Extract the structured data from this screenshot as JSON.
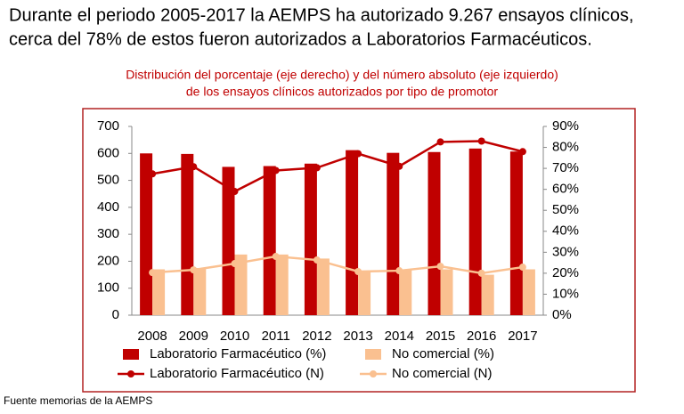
{
  "header": {
    "lines": [
      "Durante el periodo 2005-2017 la AEMPS ha autorizado 9.267 ensayos clínicos,",
      "cerca del 78% de estos fueron autorizados a Laboratorios Farmacéuticos."
    ]
  },
  "source": "Fuente memorias de la AEMPS",
  "chart_data": {
    "type": "combo",
    "title": [
      "Distribución del porcentaje (eje derecho) y del número absoluto (eje izquierdo)",
      "de los ensayos clínicos autorizados por tipo de promotor"
    ],
    "categories": [
      "2008",
      "2009",
      "2010",
      "2011",
      "2012",
      "2013",
      "2014",
      "2015",
      "2016",
      "2017"
    ],
    "ylim": [
      0,
      700
    ],
    "yticks": [
      0,
      100,
      200,
      300,
      400,
      500,
      600,
      700
    ],
    "y2lim": [
      0,
      90
    ],
    "y2ticks": [
      {
        "value": 0,
        "label": "0%"
      },
      {
        "value": 10,
        "label": "10%"
      },
      {
        "value": 20,
        "label": "20%"
      },
      {
        "value": 30,
        "label": "30%"
      },
      {
        "value": 40,
        "label": "40%"
      },
      {
        "value": 50,
        "label": "50%"
      },
      {
        "value": 60,
        "label": "60%"
      },
      {
        "value": 70,
        "label": "70%"
      },
      {
        "value": 80,
        "label": "80%"
      },
      {
        "value": 90,
        "label": "90%"
      }
    ],
    "series": [
      {
        "name": "Laboratorio Farmacéutico (%)",
        "type": "bar",
        "color": "#c00000",
        "values": [
          600,
          598,
          550,
          553,
          562,
          612,
          602,
          605,
          618,
          607
        ]
      },
      {
        "name": "No comercial (%)",
        "type": "bar",
        "color": "#fac090",
        "values": [
          170,
          175,
          225,
          225,
          210,
          165,
          170,
          170,
          150,
          170
        ]
      },
      {
        "name": "Laboratorio Farmacéutico (N)",
        "type": "line",
        "axis": "y2",
        "color": "#c00000",
        "values": [
          67.4,
          70.8,
          59,
          69,
          70.3,
          77,
          71,
          82.6,
          83,
          78
        ]
      },
      {
        "name": "No comercial (N)",
        "type": "line",
        "axis": "y2",
        "color": "#fac090",
        "values": [
          20.3,
          21.6,
          24.6,
          28,
          26.3,
          20.8,
          21.2,
          23.3,
          20,
          22.9
        ]
      }
    ]
  }
}
